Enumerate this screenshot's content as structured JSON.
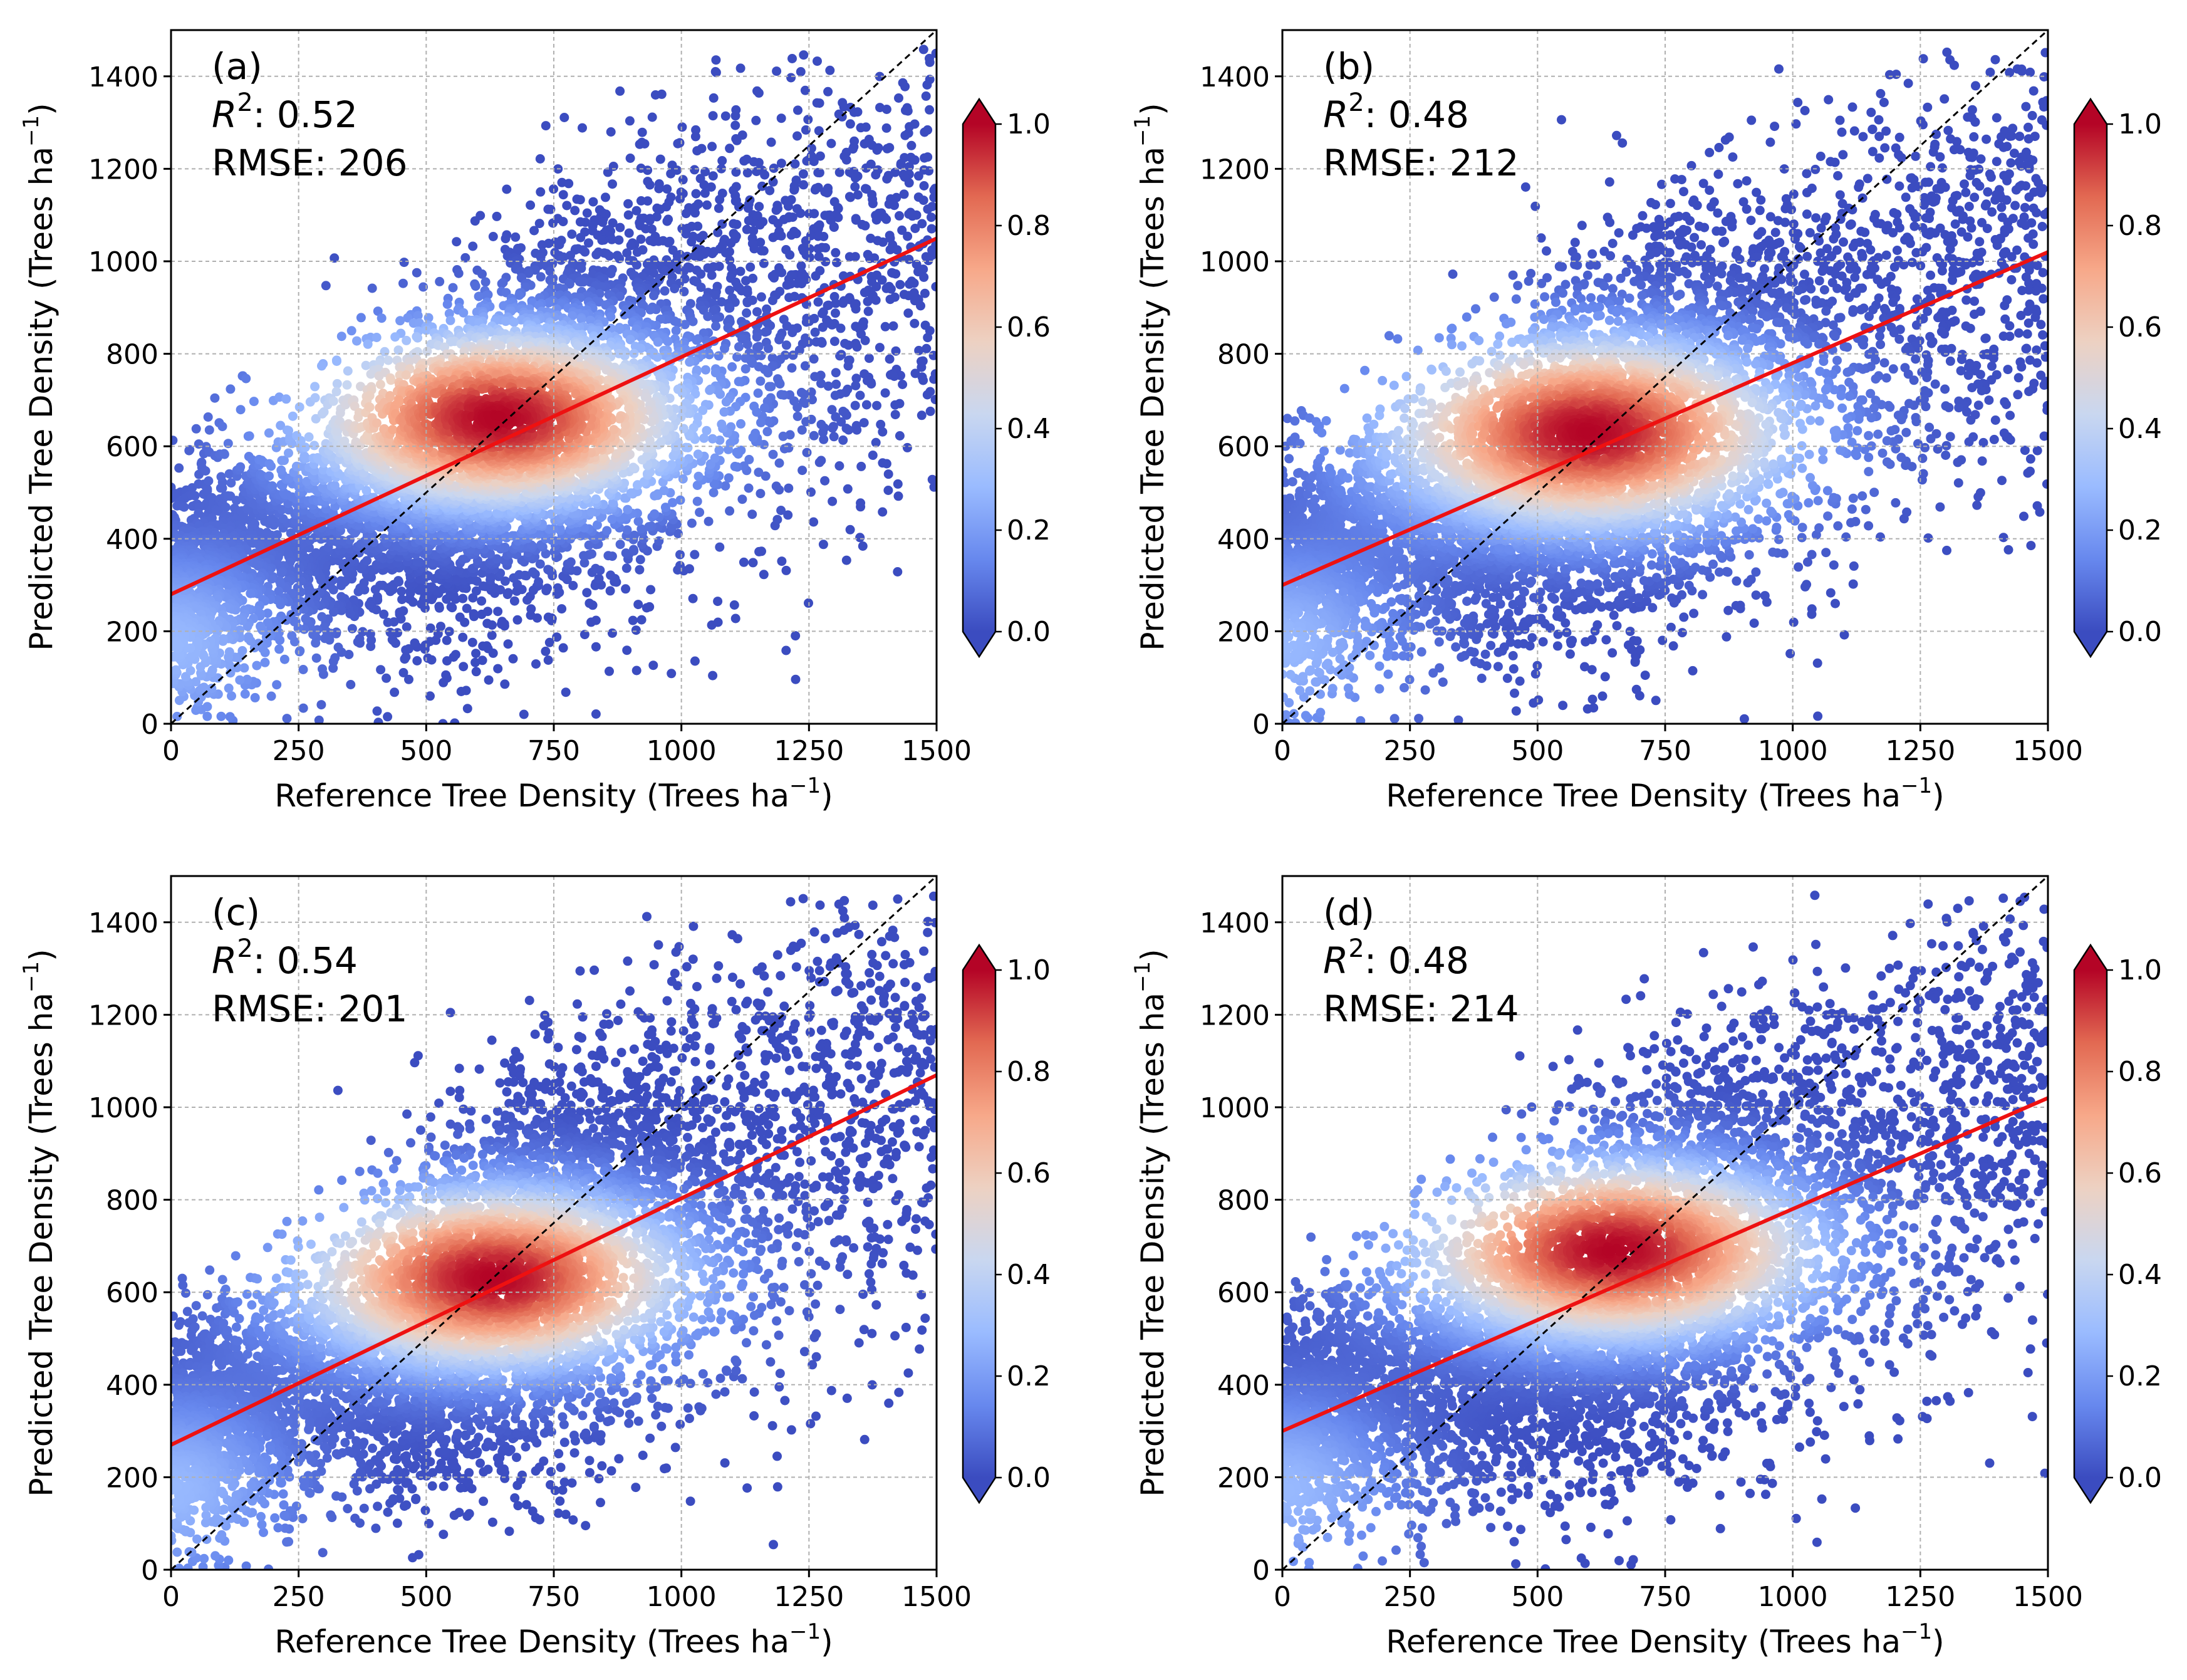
{
  "figure": {
    "colormap": {
      "name": "coolwarm",
      "stops": [
        "#3b4cc0",
        "#6788ee",
        "#9abbff",
        "#c9d7f0",
        "#edd1c2",
        "#f7a889",
        "#e26952",
        "#b40426"
      ]
    },
    "line_colors": {
      "fit": "#ee1111",
      "identity": "#000000"
    }
  },
  "chart_data": [
    {
      "type": "scatter",
      "panel": "(a)",
      "annotation": {
        "r2_label": "R",
        "r2_sup": "2",
        "r2_value": ": 0.52",
        "rmse_text": "RMSE: 206"
      },
      "xlabel": "Reference Tree Density (Trees ha",
      "xlabel_sup": "−1",
      "xlabel_end": ")",
      "ylabel": "Predicted Tree Density (Trees ha",
      "ylabel_sup": "−1",
      "ylabel_end": ")",
      "xlim": [
        0,
        1500
      ],
      "ylim": [
        0,
        1500
      ],
      "xticks": [
        0,
        250,
        500,
        750,
        1000,
        1250,
        1500
      ],
      "yticks": [
        0,
        200,
        400,
        600,
        800,
        1000,
        1200,
        1400
      ],
      "grid": true,
      "density_peak": {
        "x": 640,
        "y": 660
      },
      "spread": {
        "sx": 200,
        "sy": 150
      },
      "fit_line": {
        "intercept": 280,
        "slope": 0.513
      },
      "identity_line": true,
      "colorbar": {
        "min": 0.0,
        "max": 1.0,
        "ticks": [
          "0.0",
          "0.2",
          "0.4",
          "0.6",
          "0.8",
          "1.0"
        ],
        "extend": "both"
      },
      "seed": 11
    },
    {
      "type": "scatter",
      "panel": "(b)",
      "annotation": {
        "r2_label": "R",
        "r2_sup": "2",
        "r2_value": ": 0.48",
        "rmse_text": "RMSE: 212"
      },
      "xlabel": "Reference Tree Density (Trees ha",
      "xlabel_sup": "−1",
      "xlabel_end": ")",
      "ylabel": "Predicted Tree Density (Trees ha",
      "ylabel_sup": "−1",
      "ylabel_end": ")",
      "xlim": [
        0,
        1500
      ],
      "ylim": [
        0,
        1500
      ],
      "xticks": [
        0,
        250,
        500,
        750,
        1000,
        1250,
        1500
      ],
      "yticks": [
        0,
        200,
        400,
        600,
        800,
        1000,
        1200,
        1400
      ],
      "grid": true,
      "density_peak": {
        "x": 600,
        "y": 630
      },
      "spread": {
        "sx": 210,
        "sy": 160
      },
      "fit_line": {
        "intercept": 300,
        "slope": 0.48
      },
      "identity_line": true,
      "colorbar": {
        "min": 0.0,
        "max": 1.0,
        "ticks": [
          "0.0",
          "0.2",
          "0.4",
          "0.6",
          "0.8",
          "1.0"
        ],
        "extend": "both"
      },
      "seed": 23
    },
    {
      "type": "scatter",
      "panel": "(c)",
      "annotation": {
        "r2_label": "R",
        "r2_sup": "2",
        "r2_value": ": 0.54",
        "rmse_text": "RMSE: 201"
      },
      "xlabel": "Reference Tree Density (Trees ha",
      "xlabel_sup": "−1",
      "xlabel_end": ")",
      "ylabel": "Predicted Tree Density (Trees ha",
      "ylabel_sup": "−1",
      "ylabel_end": ")",
      "xlim": [
        0,
        1500
      ],
      "ylim": [
        0,
        1500
      ],
      "xticks": [
        0,
        250,
        500,
        750,
        1000,
        1250,
        1500
      ],
      "yticks": [
        0,
        200,
        400,
        600,
        800,
        1000,
        1200,
        1400
      ],
      "grid": true,
      "density_peak": {
        "x": 630,
        "y": 630
      },
      "spread": {
        "sx": 200,
        "sy": 150
      },
      "fit_line": {
        "intercept": 270,
        "slope": 0.533
      },
      "identity_line": true,
      "colorbar": {
        "min": 0.0,
        "max": 1.0,
        "ticks": [
          "0.0",
          "0.2",
          "0.4",
          "0.6",
          "0.8",
          "1.0"
        ],
        "extend": "both"
      },
      "seed": 37
    },
    {
      "type": "scatter",
      "panel": "(d)",
      "annotation": {
        "r2_label": "R",
        "r2_sup": "2",
        "r2_value": ": 0.48",
        "rmse_text": "RMSE: 214"
      },
      "xlabel": "Reference Tree Density (Trees ha",
      "xlabel_sup": "−1",
      "xlabel_end": ")",
      "ylabel": "Predicted Tree Density (Trees ha",
      "ylabel_sup": "−1",
      "ylabel_end": ")",
      "xlim": [
        0,
        1500
      ],
      "ylim": [
        0,
        1500
      ],
      "xticks": [
        0,
        250,
        500,
        750,
        1000,
        1250,
        1500
      ],
      "yticks": [
        0,
        200,
        400,
        600,
        800,
        1000,
        1200,
        1400
      ],
      "grid": true,
      "density_peak": {
        "x": 650,
        "y": 690
      },
      "spread": {
        "sx": 210,
        "sy": 150
      },
      "fit_line": {
        "intercept": 300,
        "slope": 0.48
      },
      "identity_line": true,
      "colorbar": {
        "min": 0.0,
        "max": 1.0,
        "ticks": [
          "0.0",
          "0.2",
          "0.4",
          "0.6",
          "0.8",
          "1.0"
        ],
        "extend": "both"
      },
      "seed": 51
    }
  ]
}
